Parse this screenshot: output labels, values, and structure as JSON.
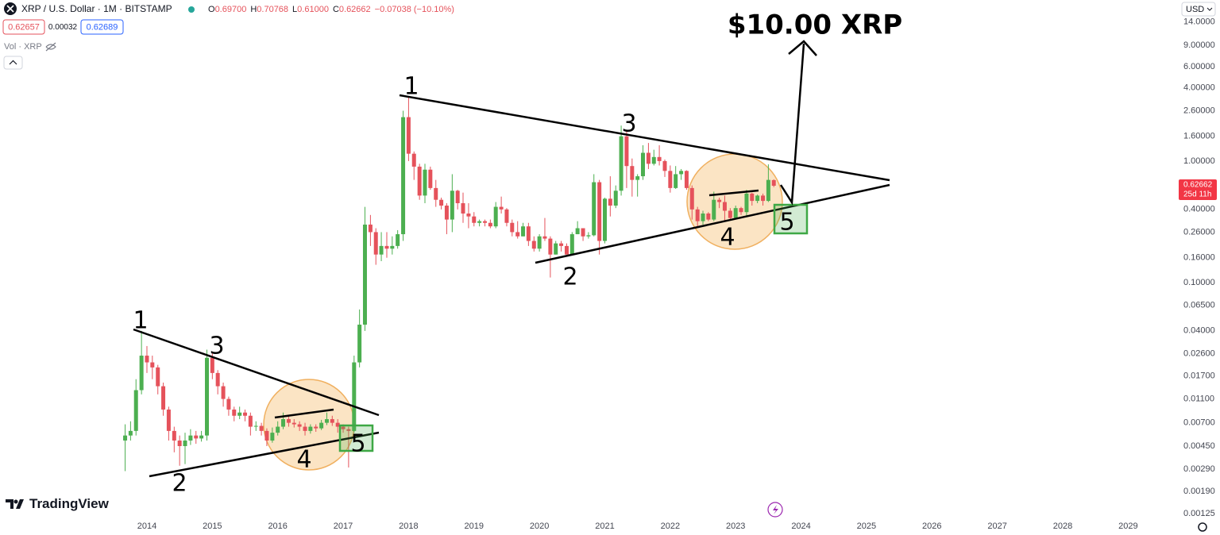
{
  "header": {
    "symbol": "XRP / U.S. Dollar · 1M · BITSTAMP",
    "ohlc": [
      {
        "key": "O",
        "value": "0.69700"
      },
      {
        "key": "H",
        "value": "0.70768"
      },
      {
        "key": "L",
        "value": "0.61000"
      },
      {
        "key": "C",
        "value": "0.62662"
      }
    ],
    "change": "−0.07038 (−10.10%)",
    "bid": "0.62657",
    "spread": "0.00032",
    "ask": "0.62689",
    "volume": "Vol · XRP"
  },
  "currency": "USD",
  "brand": "TradingView",
  "chart_data": {
    "type": "candlestick",
    "log_scale": true,
    "grid": false,
    "up_color": "#4caf50",
    "down_color": "#e5525b",
    "x": [
      2013.667,
      2013.75,
      2013.833,
      2013.917,
      2014.0,
      2014.083,
      2014.167,
      2014.25,
      2014.333,
      2014.417,
      2014.5,
      2014.583,
      2014.667,
      2014.75,
      2014.833,
      2014.917,
      2015.0,
      2015.083,
      2015.167,
      2015.25,
      2015.333,
      2015.417,
      2015.5,
      2015.583,
      2015.667,
      2015.75,
      2015.833,
      2015.917,
      2016.0,
      2016.083,
      2016.167,
      2016.25,
      2016.333,
      2016.417,
      2016.5,
      2016.583,
      2016.667,
      2016.75,
      2016.833,
      2016.917,
      2017.0,
      2017.083,
      2017.167,
      2017.25,
      2017.333,
      2017.417,
      2017.5,
      2017.583,
      2017.667,
      2017.75,
      2017.833,
      2017.917,
      2018.0,
      2018.083,
      2018.167,
      2018.25,
      2018.333,
      2018.417,
      2018.5,
      2018.583,
      2018.667,
      2018.75,
      2018.833,
      2018.917,
      2019.0,
      2019.083,
      2019.167,
      2019.25,
      2019.333,
      2019.417,
      2019.5,
      2019.583,
      2019.667,
      2019.75,
      2019.833,
      2019.917,
      2020.0,
      2020.083,
      2020.167,
      2020.25,
      2020.333,
      2020.417,
      2020.5,
      2020.583,
      2020.667,
      2020.75,
      2020.833,
      2020.917,
      2021.0,
      2021.083,
      2021.167,
      2021.25,
      2021.333,
      2021.417,
      2021.5,
      2021.583,
      2021.667,
      2021.75,
      2021.833,
      2021.917,
      2022.0,
      2022.083,
      2022.167,
      2022.25,
      2022.333,
      2022.417,
      2022.5,
      2022.583,
      2022.667,
      2022.75,
      2022.833,
      2022.917,
      2023.0,
      2023.083,
      2023.167,
      2023.25,
      2023.333,
      2023.417,
      2023.5,
      2023.583
    ],
    "open": [
      0.005,
      0.0055,
      0.006,
      0.013,
      0.025,
      0.022,
      0.02,
      0.014,
      0.009,
      0.006,
      0.005,
      0.0045,
      0.005,
      0.0055,
      0.0052,
      0.0055,
      0.024,
      0.018,
      0.014,
      0.011,
      0.009,
      0.008,
      0.0085,
      0.008,
      0.0065,
      0.0066,
      0.006,
      0.005,
      0.0058,
      0.0065,
      0.0075,
      0.007,
      0.0068,
      0.0065,
      0.006,
      0.0065,
      0.0063,
      0.007,
      0.0075,
      0.007,
      0.0065,
      0.0062,
      0.006,
      0.022,
      0.045,
      0.3,
      0.26,
      0.17,
      0.2,
      0.19,
      0.2,
      0.25,
      2.3,
      1.15,
      0.9,
      0.52,
      0.85,
      0.6,
      0.48,
      0.43,
      0.33,
      0.57,
      0.45,
      0.37,
      0.35,
      0.31,
      0.32,
      0.31,
      0.29,
      0.42,
      0.4,
      0.31,
      0.26,
      0.24,
      0.29,
      0.22,
      0.19,
      0.24,
      0.23,
      0.17,
      0.21,
      0.2,
      0.17,
      0.25,
      0.28,
      0.24,
      0.245,
      0.67,
      0.22,
      0.49,
      0.43,
      0.57,
      1.6,
      0.91,
      0.7,
      0.75,
      1.17,
      0.95,
      1.08,
      1.0,
      0.83,
      0.6,
      0.78,
      0.83,
      0.6,
      0.4,
      0.32,
      0.37,
      0.33,
      0.48,
      0.46,
      0.39,
      0.34,
      0.41,
      0.38,
      0.54,
      0.47,
      0.52,
      0.47,
      0.697
    ],
    "high": [
      0.0068,
      0.0072,
      0.016,
      0.04,
      0.03,
      0.025,
      0.021,
      0.015,
      0.0095,
      0.0065,
      0.0055,
      0.0058,
      0.0062,
      0.006,
      0.006,
      0.028,
      0.026,
      0.019,
      0.015,
      0.0115,
      0.0095,
      0.0095,
      0.009,
      0.0085,
      0.0072,
      0.007,
      0.0063,
      0.0064,
      0.0072,
      0.0085,
      0.008,
      0.0075,
      0.0072,
      0.007,
      0.0068,
      0.0068,
      0.0074,
      0.0085,
      0.008,
      0.0075,
      0.0068,
      0.0065,
      0.025,
      0.06,
      0.42,
      0.36,
      0.28,
      0.26,
      0.26,
      0.24,
      0.27,
      2.6,
      3.4,
      1.2,
      0.95,
      0.95,
      0.9,
      0.7,
      0.5,
      0.45,
      0.78,
      0.58,
      0.55,
      0.45,
      0.38,
      0.33,
      0.33,
      0.33,
      0.46,
      0.51,
      0.41,
      0.33,
      0.32,
      0.31,
      0.31,
      0.24,
      0.25,
      0.34,
      0.24,
      0.22,
      0.22,
      0.21,
      0.26,
      0.32,
      0.28,
      0.26,
      0.78,
      0.7,
      0.5,
      0.75,
      0.63,
      1.96,
      1.75,
      1.05,
      0.78,
      1.35,
      1.41,
      1.24,
      1.35,
      1.03,
      0.92,
      0.91,
      0.86,
      0.84,
      0.63,
      0.42,
      0.39,
      0.38,
      0.56,
      0.5,
      0.52,
      0.41,
      0.43,
      0.42,
      0.58,
      0.55,
      0.53,
      0.54,
      0.94,
      0.70768
    ],
    "low": [
      0.0028,
      0.005,
      0.0055,
      0.012,
      0.018,
      0.016,
      0.012,
      0.008,
      0.005,
      0.004,
      0.0031,
      0.0032,
      0.0046,
      0.0047,
      0.0049,
      0.005,
      0.016,
      0.012,
      0.0095,
      0.008,
      0.0072,
      0.0075,
      0.0072,
      0.0055,
      0.006,
      0.0055,
      0.0045,
      0.0048,
      0.0055,
      0.0062,
      0.0065,
      0.0064,
      0.006,
      0.0055,
      0.0057,
      0.0059,
      0.0061,
      0.0067,
      0.0066,
      0.0058,
      0.0058,
      0.003,
      0.0058,
      0.02,
      0.04,
      0.2,
      0.14,
      0.15,
      0.16,
      0.17,
      0.19,
      0.22,
      1.0,
      0.7,
      0.48,
      0.45,
      0.58,
      0.42,
      0.4,
      0.25,
      0.26,
      0.4,
      0.31,
      0.28,
      0.29,
      0.29,
      0.29,
      0.28,
      0.28,
      0.37,
      0.29,
      0.24,
      0.23,
      0.24,
      0.2,
      0.18,
      0.18,
      0.22,
      0.11,
      0.17,
      0.18,
      0.17,
      0.17,
      0.25,
      0.22,
      0.23,
      0.24,
      0.17,
      0.21,
      0.35,
      0.41,
      0.52,
      0.6,
      0.51,
      0.51,
      0.7,
      0.86,
      0.92,
      0.92,
      0.74,
      0.55,
      0.59,
      0.7,
      0.58,
      0.33,
      0.29,
      0.3,
      0.32,
      0.32,
      0.41,
      0.32,
      0.33,
      0.34,
      0.36,
      0.35,
      0.43,
      0.45,
      0.43,
      0.46,
      0.61
    ],
    "close": [
      0.0055,
      0.006,
      0.013,
      0.025,
      0.022,
      0.02,
      0.014,
      0.009,
      0.006,
      0.005,
      0.0045,
      0.005,
      0.0055,
      0.0052,
      0.0055,
      0.024,
      0.018,
      0.014,
      0.011,
      0.009,
      0.008,
      0.0085,
      0.008,
      0.0065,
      0.0066,
      0.006,
      0.005,
      0.0058,
      0.0065,
      0.0075,
      0.007,
      0.0068,
      0.0065,
      0.006,
      0.0065,
      0.0063,
      0.007,
      0.0075,
      0.007,
      0.0065,
      0.0062,
      0.006,
      0.022,
      0.045,
      0.3,
      0.26,
      0.17,
      0.2,
      0.19,
      0.2,
      0.25,
      2.3,
      1.15,
      0.9,
      0.52,
      0.85,
      0.6,
      0.48,
      0.43,
      0.33,
      0.57,
      0.45,
      0.37,
      0.35,
      0.31,
      0.32,
      0.31,
      0.29,
      0.42,
      0.4,
      0.31,
      0.26,
      0.24,
      0.29,
      0.22,
      0.19,
      0.24,
      0.23,
      0.17,
      0.21,
      0.2,
      0.17,
      0.25,
      0.28,
      0.24,
      0.245,
      0.67,
      0.22,
      0.49,
      0.43,
      0.57,
      1.6,
      0.91,
      0.7,
      0.75,
      1.17,
      0.95,
      1.08,
      1.0,
      0.83,
      0.6,
      0.78,
      0.83,
      0.6,
      0.4,
      0.32,
      0.37,
      0.33,
      0.48,
      0.46,
      0.39,
      0.34,
      0.41,
      0.38,
      0.54,
      0.47,
      0.52,
      0.47,
      0.7,
      0.62662
    ],
    "xlim": [
      2011.754,
      2029.7
    ],
    "xticks": [
      2014,
      2015,
      2016,
      2017,
      2018,
      2019,
      2020,
      2021,
      2022,
      2023,
      2024,
      2025,
      2026,
      2027,
      2028,
      2029
    ],
    "ylim": [
      0.00111,
      21.2
    ],
    "yticks": [
      {
        "value": 14,
        "label": "14.0000"
      },
      {
        "value": 9,
        "label": "9.00000"
      },
      {
        "value": 6,
        "label": "6.00000"
      },
      {
        "value": 4,
        "label": "4.00000"
      },
      {
        "value": 2.6,
        "label": "2.60000"
      },
      {
        "value": 1.6,
        "label": "1.60000"
      },
      {
        "value": 1,
        "label": "1.00000"
      },
      {
        "value": 0.4,
        "label": "0.40000"
      },
      {
        "value": 0.26,
        "label": "0.26000"
      },
      {
        "value": 0.16,
        "label": "0.16000"
      },
      {
        "value": 0.1,
        "label": "0.10000"
      },
      {
        "value": 0.065,
        "label": "0.06500"
      },
      {
        "value": 0.04,
        "label": "0.04000"
      },
      {
        "value": 0.026,
        "label": "0.02600"
      },
      {
        "value": 0.017,
        "label": "0.01700"
      },
      {
        "value": 0.011,
        "label": "0.01100"
      },
      {
        "value": 0.007,
        "label": "0.00700"
      },
      {
        "value": 0.0045,
        "label": "0.00450"
      },
      {
        "value": 0.0029,
        "label": "0.00290"
      },
      {
        "value": 0.0019,
        "label": "0.00190"
      },
      {
        "value": 0.00125,
        "label": "0.00125"
      }
    ],
    "price_label": "0.62662",
    "countdown": "25d 11h",
    "target": "$10.00 XRP",
    "annotations": [
      "1",
      "2",
      "3",
      "4",
      "5",
      "1",
      "2",
      "3",
      "4",
      "5"
    ]
  }
}
